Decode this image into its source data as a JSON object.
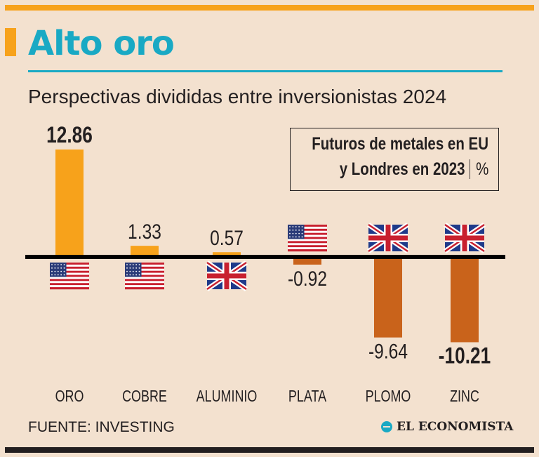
{
  "title": "Alto oro",
  "subtitle": "Perspectivas divididas entre inversionistas 2024",
  "legend": {
    "line1": "Futuros de metales en EU",
    "line2": "y Londres en 2023",
    "unit": "%"
  },
  "source": "FUENTE: INVESTING",
  "brand": "EL ECONOMISTA",
  "colors": {
    "background": "#f3e1cf",
    "positive_bar": "#f7a21b",
    "negative_bar": "#c9631b",
    "title": "#19a9c4",
    "axis": "#000000"
  },
  "chart_data": {
    "type": "bar",
    "title": "Alto oro",
    "subtitle": "Perspectivas divididas entre inversionistas 2024",
    "unit": "%",
    "categories": [
      "ORO",
      "COBRE",
      "ALUMINIO",
      "PLATA",
      "PLOMO",
      "ZINC"
    ],
    "values": [
      12.86,
      1.33,
      0.57,
      -0.92,
      -9.64,
      -10.21
    ],
    "value_labels": [
      "12.86",
      "1.33",
      "0.57",
      "-0.92",
      "-9.64",
      "-10.21"
    ],
    "bold_labels": [
      true,
      false,
      false,
      false,
      false,
      true
    ],
    "markets": [
      "us",
      "us",
      "uk",
      "us",
      "uk",
      "uk"
    ],
    "market_names": [
      "EU",
      "EU",
      "Londres",
      "EU",
      "Londres",
      "Londres"
    ],
    "ylim": [
      -11,
      13
    ],
    "zero_line": true,
    "grid": false
  }
}
